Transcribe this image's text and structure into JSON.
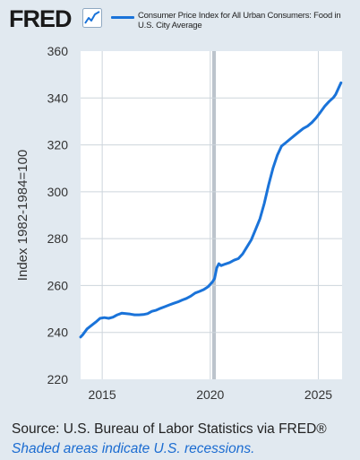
{
  "logo": {
    "text": "FRED",
    "icon": "line-chart-icon"
  },
  "colors": {
    "series": "#1a73d9",
    "background": "#e1e9f0",
    "plot_background": "#ffffff",
    "grid": "#cdd5dc"
  },
  "footer": {
    "source": "Source: U.S. Bureau of Labor Statistics via FRED®",
    "note": "Shaded areas indicate U.S. recessions."
  },
  "chart_data": {
    "type": "line",
    "title": "",
    "legend": {
      "placement": "top",
      "entries": [
        "Consumer Price Index for All Urban Consumers: Food in U.S. City Average"
      ]
    },
    "xlabel": "",
    "ylabel": "Index 1982-1984=100",
    "xlim": [
      2014.0,
      2026.1
    ],
    "ylim": [
      220,
      360
    ],
    "yticks": [
      220,
      240,
      260,
      280,
      300,
      320,
      340,
      360
    ],
    "xticks": [
      2015,
      2020,
      2025
    ],
    "grid": true,
    "recessions": [
      [
        2020.09,
        2020.26
      ]
    ],
    "series": [
      {
        "name": "Consumer Price Index for All Urban Consumers: Food in U.S. City Average",
        "points": [
          [
            2014.0,
            238.0
          ],
          [
            2014.1,
            239.0
          ],
          [
            2014.3,
            241.5
          ],
          [
            2014.5,
            243.0
          ],
          [
            2014.7,
            244.4
          ],
          [
            2014.9,
            246.0
          ],
          [
            2015.1,
            246.3
          ],
          [
            2015.3,
            246.0
          ],
          [
            2015.5,
            246.5
          ],
          [
            2015.7,
            247.5
          ],
          [
            2015.9,
            248.2
          ],
          [
            2016.1,
            248.0
          ],
          [
            2016.3,
            247.8
          ],
          [
            2016.5,
            247.5
          ],
          [
            2016.7,
            247.5
          ],
          [
            2016.9,
            247.6
          ],
          [
            2017.1,
            248.0
          ],
          [
            2017.3,
            249.0
          ],
          [
            2017.5,
            249.5
          ],
          [
            2017.7,
            250.3
          ],
          [
            2017.9,
            251.0
          ],
          [
            2018.1,
            251.7
          ],
          [
            2018.3,
            252.4
          ],
          [
            2018.5,
            253.0
          ],
          [
            2018.7,
            253.8
          ],
          [
            2018.9,
            254.5
          ],
          [
            2019.1,
            255.5
          ],
          [
            2019.3,
            256.8
          ],
          [
            2019.5,
            257.5
          ],
          [
            2019.7,
            258.3
          ],
          [
            2019.9,
            259.5
          ],
          [
            2020.1,
            261.5
          ],
          [
            2020.2,
            263.0
          ],
          [
            2020.3,
            267.5
          ],
          [
            2020.4,
            269.3
          ],
          [
            2020.5,
            268.5
          ],
          [
            2020.7,
            269.2
          ],
          [
            2020.9,
            269.8
          ],
          [
            2021.1,
            270.8
          ],
          [
            2021.3,
            271.5
          ],
          [
            2021.5,
            273.5
          ],
          [
            2021.7,
            276.5
          ],
          [
            2021.9,
            279.5
          ],
          [
            2022.1,
            284.0
          ],
          [
            2022.3,
            288.5
          ],
          [
            2022.5,
            295.0
          ],
          [
            2022.7,
            303.0
          ],
          [
            2022.9,
            310.0
          ],
          [
            2023.1,
            315.5
          ],
          [
            2023.3,
            319.5
          ],
          [
            2023.5,
            321.0
          ],
          [
            2023.7,
            322.5
          ],
          [
            2023.9,
            324.0
          ],
          [
            2024.1,
            325.5
          ],
          [
            2024.3,
            327.0
          ],
          [
            2024.5,
            328.0
          ],
          [
            2024.7,
            329.5
          ],
          [
            2024.9,
            331.5
          ],
          [
            2025.1,
            334.0
          ],
          [
            2025.3,
            336.5
          ],
          [
            2025.5,
            338.5
          ],
          [
            2025.7,
            340.2
          ],
          [
            2025.8,
            341.5
          ],
          [
            2025.9,
            343.5
          ],
          [
            2026.0,
            345.5
          ],
          [
            2026.05,
            346.5
          ]
        ]
      }
    ]
  }
}
